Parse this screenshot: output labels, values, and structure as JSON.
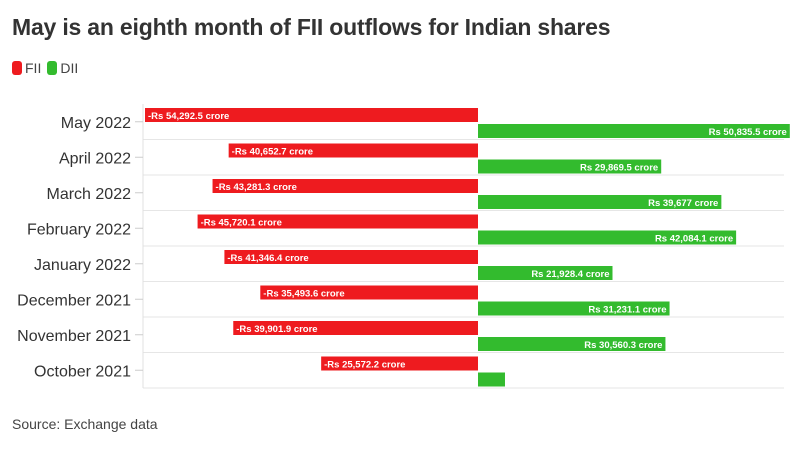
{
  "chart_data": {
    "type": "bar",
    "orientation": "horizontal",
    "title": "May is an eighth month of FII outflows for Indian shares",
    "categories": [
      "May 2022",
      "April 2022",
      "March 2022",
      "February 2022",
      "January 2022",
      "December 2021",
      "November 2021",
      "October 2021"
    ],
    "series": [
      {
        "name": "FII",
        "color": "#ee1b1f",
        "values": [
          -54292.5,
          -40652.7,
          -43281.3,
          -45720.1,
          -41346.4,
          -35493.6,
          -39901.9,
          -25572.2
        ],
        "labels": [
          "-Rs 54,292.5 crore",
          "-Rs 40,652.7 crore",
          "-Rs 43,281.3 crore",
          "-Rs 45,720.1 crore",
          "-Rs 41,346.4 crore",
          "-Rs 35,493.6 crore",
          "-Rs 39,901.9 crore",
          "-Rs 25,572.2 crore"
        ]
      },
      {
        "name": "DII",
        "color": "#33bb2e",
        "values": [
          50835.5,
          29869.5,
          39677,
          42084.1,
          21928.4,
          31231.1,
          30560.3,
          4400
        ],
        "labels": [
          "Rs 50,835.5 crore",
          "Rs 29,869.5 crore",
          "Rs 39,677 crore",
          "Rs 42,084.1 crore",
          "Rs 21,928.4 crore",
          "Rs 31,231.1 crore",
          "Rs 30,560.3 crore",
          null
        ]
      }
    ],
    "legend_position": "top-left",
    "grid": true,
    "units": "Rs crore"
  },
  "source": "Source: Exchange data"
}
